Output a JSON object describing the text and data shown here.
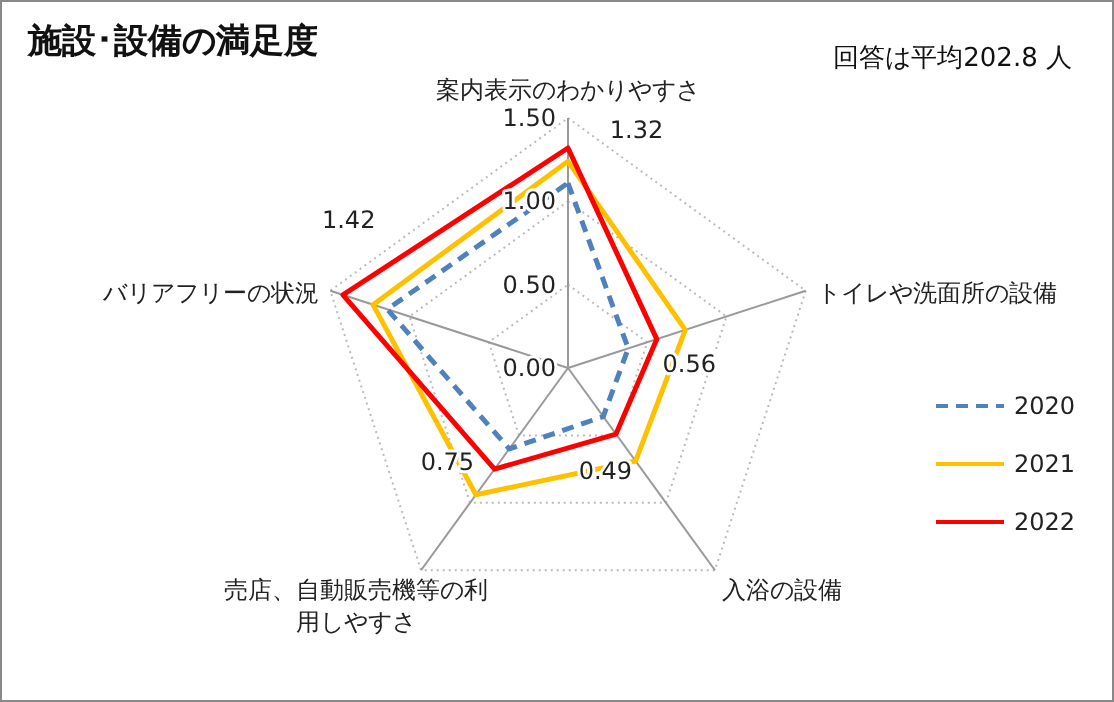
{
  "chart_data": {
    "type": "radar",
    "title": "施設･設備の満足度",
    "annotations": [
      "回答は平均202.8 人"
    ],
    "categories": [
      "案内表示のわかりやすさ",
      "トイレや洗面所の設備",
      "入浴の設備",
      "売店、自動販売機等の利用しやすさ",
      "バリアフリーの状況"
    ],
    "series": [
      {
        "name": "2020",
        "color": "#4f81bd",
        "line_style": "dashed",
        "values": [
          1.11,
          0.38,
          0.36,
          0.6,
          1.14
        ]
      },
      {
        "name": "2021",
        "color": "#ffc000",
        "line_style": "solid",
        "values": [
          1.24,
          0.74,
          0.69,
          0.94,
          1.23
        ]
      },
      {
        "name": "2022",
        "color": "#ff0000",
        "line_style": "solid",
        "values": [
          1.32,
          0.56,
          0.49,
          0.75,
          1.42
        ],
        "value_labels": [
          "1.32",
          "0.56",
          "0.49",
          "0.75",
          "1.42"
        ]
      }
    ],
    "ylim": [
      0,
      1.5
    ],
    "yticks": [
      {
        "value": 0,
        "label": "0.00"
      },
      {
        "value": 0.5,
        "label": "0.50"
      },
      {
        "value": 1,
        "label": "1.00"
      },
      {
        "value": 1.5,
        "label": "1.50"
      }
    ],
    "grid": true,
    "legend": "right",
    "marker": "none"
  }
}
